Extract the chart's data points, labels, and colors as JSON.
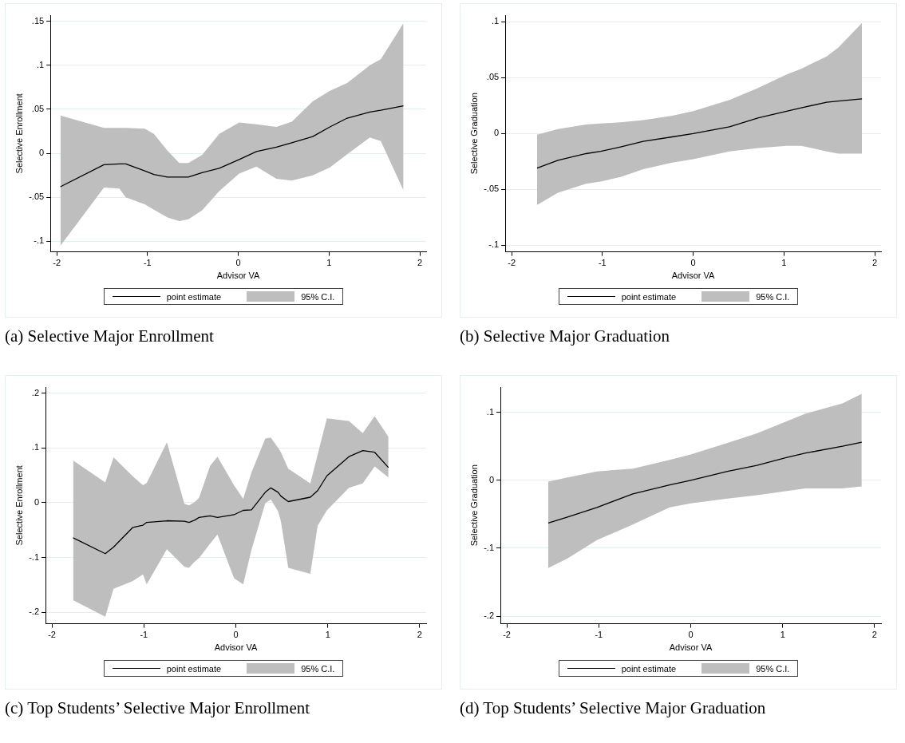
{
  "chart_data": [
    {
      "type": "line",
      "title": "(a) Selective Major Enrollment",
      "xlabel": "Advisor VA",
      "ylabel": "Selective Enrollment",
      "xlim": [
        -2.07,
        2.07
      ],
      "xticks": [
        -2,
        -1,
        0,
        1,
        2
      ],
      "ylim": [
        -0.112,
        0.157
      ],
      "yticks": [
        {
          "value": -0.1,
          "label": "-.1"
        },
        {
          "value": -0.05,
          "label": "-.05"
        },
        {
          "value": 0,
          "label": "0"
        },
        {
          "value": 0.05,
          "label": ".05"
        },
        {
          "value": 0.1,
          "label": ".1"
        },
        {
          "value": 0.15,
          "label": ".15"
        }
      ],
      "grid": "y",
      "legend": "bottom",
      "annotations": [
        "95% C.I."
      ],
      "series": [
        {
          "name": "point estimate",
          "color": "#000000",
          "x": [
            -1.96,
            -1.48,
            -1.31,
            -1.24,
            -1.03,
            -0.93,
            -0.78,
            -0.65,
            -0.55,
            -0.4,
            -0.21,
            0.01,
            0.2,
            0.42,
            0.59,
            0.82,
            1.01,
            1.2,
            1.45,
            1.57,
            1.82
          ],
          "values": [
            -0.038,
            -0.013,
            -0.012,
            -0.012,
            -0.02,
            -0.024,
            -0.027,
            -0.027,
            -0.027,
            -0.022,
            -0.017,
            -0.007,
            0.002,
            0.007,
            0.012,
            0.019,
            0.03,
            0.04,
            0.047,
            0.049,
            0.054
          ],
          "lower": [
            -0.105,
            -0.039,
            -0.04,
            -0.05,
            -0.058,
            -0.064,
            -0.073,
            -0.077,
            -0.075,
            -0.065,
            -0.043,
            -0.023,
            -0.015,
            -0.029,
            -0.031,
            -0.025,
            -0.016,
            -0.001,
            0.018,
            0.014,
            -0.042
          ],
          "upper": [
            0.043,
            0.029,
            0.029,
            0.029,
            0.028,
            0.022,
            0.003,
            -0.011,
            -0.011,
            -0.002,
            0.022,
            0.035,
            0.033,
            0.03,
            0.036,
            0.059,
            0.071,
            0.08,
            0.1,
            0.107,
            0.148
          ]
        }
      ]
    },
    {
      "type": "line",
      "title": "(b) Selective Major Graduation",
      "xlabel": "Advisor VA",
      "ylabel": "Selective Graduation",
      "xlim": [
        -2.07,
        2.07
      ],
      "xticks": [
        -2,
        -1,
        0,
        1,
        2
      ],
      "ylim": [
        -0.106,
        0.106
      ],
      "yticks": [
        {
          "value": -0.1,
          "label": "-.1"
        },
        {
          "value": -0.05,
          "label": "-.05"
        },
        {
          "value": 0,
          "label": "0"
        },
        {
          "value": 0.05,
          "label": ".05"
        },
        {
          "value": 0.1,
          "label": ".1"
        }
      ],
      "grid": "y",
      "legend": "bottom",
      "annotations": [
        "95% C.I."
      ],
      "series": [
        {
          "name": "point estimate",
          "color": "#000000",
          "x": [
            -1.72,
            -1.49,
            -1.18,
            -1.02,
            -0.8,
            -0.55,
            -0.23,
            0,
            0.4,
            0.72,
            1.03,
            1.19,
            1.47,
            1.6,
            1.86
          ],
          "values": [
            -0.031,
            -0.024,
            -0.018,
            -0.016,
            -0.012,
            -0.007,
            -0.003,
            0,
            0.006,
            0.014,
            0.02,
            0.023,
            0.028,
            0.029,
            0.031
          ],
          "lower": [
            -0.064,
            -0.053,
            -0.045,
            -0.043,
            -0.039,
            -0.032,
            -0.026,
            -0.023,
            -0.016,
            -0.013,
            -0.011,
            -0.011,
            -0.016,
            -0.018,
            -0.018
          ],
          "upper": [
            -0.001,
            0.004,
            0.008,
            0.009,
            0.01,
            0.012,
            0.016,
            0.02,
            0.03,
            0.041,
            0.053,
            0.058,
            0.069,
            0.077,
            0.099
          ]
        }
      ]
    },
    {
      "type": "line",
      "title": "(c) Top Students’ Selective Major Enrollment",
      "xlabel": "Advisor VA",
      "ylabel": "Selective Enrollment",
      "xlim": [
        -2.07,
        2.07
      ],
      "xticks": [
        -2,
        -1,
        0,
        1,
        2
      ],
      "ylim": [
        -0.221,
        0.211
      ],
      "yticks": [
        {
          "value": -0.2,
          "label": "-.2"
        },
        {
          "value": -0.1,
          "label": "-.1"
        },
        {
          "value": 0,
          "label": "0"
        },
        {
          "value": 0.1,
          "label": ".1"
        },
        {
          "value": 0.2,
          "label": ".2"
        }
      ],
      "grid": "y",
      "legend": "bottom",
      "annotations": [
        "95% C.I."
      ],
      "series": [
        {
          "name": "point estimate",
          "color": "#000000",
          "x": [
            -1.77,
            -1.42,
            -1.33,
            -1.12,
            -1.01,
            -0.97,
            -0.75,
            -0.56,
            -0.51,
            -0.45,
            -0.4,
            -0.28,
            -0.2,
            -0.02,
            0.08,
            0.17,
            0.32,
            0.38,
            0.46,
            0.49,
            0.57,
            0.81,
            0.89,
            0.99,
            1.23,
            1.38,
            1.51,
            1.66
          ],
          "values": [
            -0.064,
            -0.093,
            -0.081,
            -0.045,
            -0.041,
            -0.036,
            -0.033,
            -0.034,
            -0.036,
            -0.032,
            -0.027,
            -0.024,
            -0.027,
            -0.022,
            -0.014,
            -0.013,
            0.019,
            0.027,
            0.019,
            0.012,
            0.002,
            0.01,
            0.022,
            0.049,
            0.084,
            0.095,
            0.092,
            0.064
          ],
          "lower": [
            -0.178,
            -0.208,
            -0.157,
            -0.143,
            -0.131,
            -0.149,
            -0.085,
            -0.117,
            -0.119,
            -0.108,
            -0.101,
            -0.075,
            -0.058,
            -0.138,
            -0.149,
            -0.086,
            -0.001,
            0.006,
            -0.016,
            -0.034,
            -0.119,
            -0.13,
            -0.042,
            -0.014,
            0.027,
            0.035,
            0.066,
            0.046
          ],
          "upper": [
            0.077,
            0.037,
            0.083,
            0.048,
            0.032,
            0.036,
            0.11,
            -0.002,
            -0.005,
            0.001,
            0.009,
            0.067,
            0.084,
            0.032,
            0.007,
            0.055,
            0.117,
            0.119,
            0.1,
            0.092,
            0.062,
            0.035,
            0.088,
            0.154,
            0.149,
            0.127,
            0.158,
            0.12
          ]
        }
      ]
    },
    {
      "type": "line",
      "title": "(d) Top Students’ Selective Major Graduation",
      "xlabel": "Advisor VA",
      "ylabel": "Selective Graduation",
      "xlim": [
        -2.07,
        2.07
      ],
      "xticks": [
        -2,
        -1,
        0,
        1,
        2
      ],
      "ylim": [
        -0.211,
        0.137
      ],
      "yticks": [
        {
          "value": -0.2,
          "label": "-.2"
        },
        {
          "value": -0.1,
          "label": "-.1"
        },
        {
          "value": 0,
          "label": "0"
        },
        {
          "value": 0.1,
          "label": ".1"
        }
      ],
      "grid": "y",
      "legend": "bottom",
      "annotations": [
        "95% C.I."
      ],
      "series": [
        {
          "name": "point estimate",
          "color": "#000000",
          "x": [
            -1.55,
            -1.34,
            -1.02,
            -0.63,
            -0.23,
            0,
            0.4,
            0.72,
            1.03,
            1.25,
            1.65,
            1.86
          ],
          "values": [
            -0.063,
            -0.054,
            -0.04,
            -0.02,
            -0.007,
            0,
            0.013,
            0.022,
            0.033,
            0.04,
            0.05,
            0.056
          ],
          "lower": [
            -0.129,
            -0.115,
            -0.088,
            -0.065,
            -0.04,
            -0.034,
            -0.027,
            -0.022,
            -0.016,
            -0.012,
            -0.012,
            -0.009
          ],
          "upper": [
            -0.002,
            0.004,
            0.013,
            0.017,
            0.03,
            0.038,
            0.055,
            0.069,
            0.086,
            0.098,
            0.113,
            0.127
          ]
        }
      ]
    }
  ]
}
